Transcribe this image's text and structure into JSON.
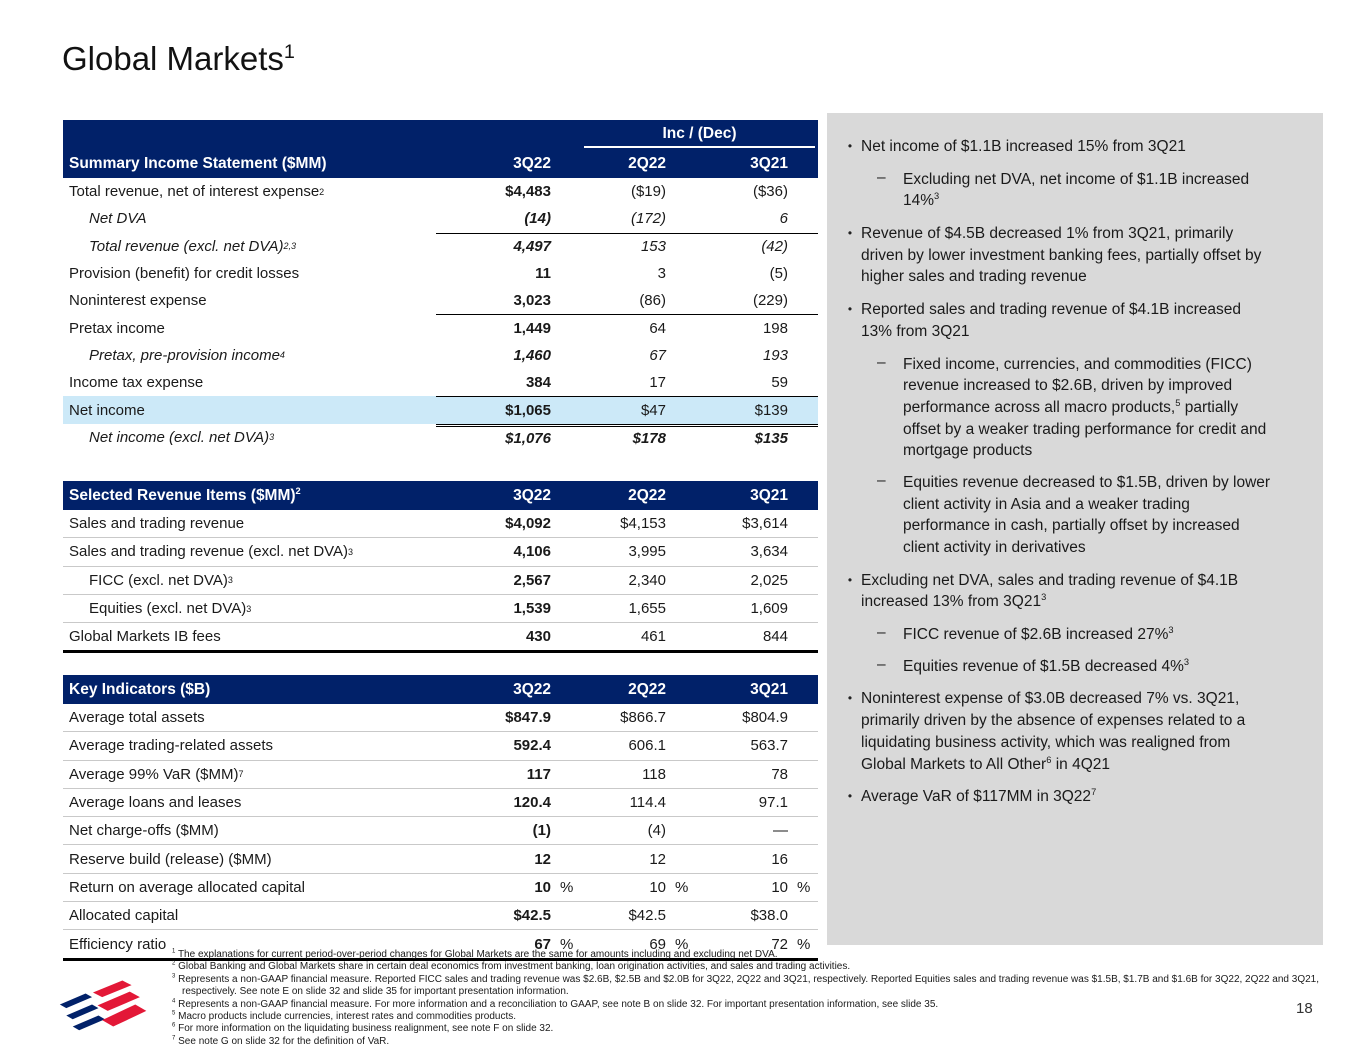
{
  "page": {
    "title": "Global Markets^1^",
    "page_number": "18"
  },
  "colors": {
    "navy": "#012169",
    "highlight_blue": "#cce9f8",
    "panel_gray": "#d9d9d9",
    "logo_red": "#e31837",
    "logo_blue": "#012169"
  },
  "tables": {
    "t1": {
      "inc_dec": "Inc / (Dec)",
      "title": "Summary Income Statement ($MM)",
      "columns": [
        "3Q22",
        "2Q22",
        "3Q21"
      ],
      "rows": [
        {
          "label": "Total revenue, net of interest expense^2^",
          "cls": "",
          "em": [
            "b",
            "",
            ""
          ],
          "v": [
            "$4,483",
            "($19)",
            "($36)"
          ]
        },
        {
          "label": "Net DVA",
          "cls": "ind ital",
          "em": [
            "b",
            "",
            ""
          ],
          "v": [
            "(14)",
            "(172)",
            "6"
          ]
        },
        {
          "label": "Total revenue (excl. net DVA)^2,3^",
          "cls": "ind ital",
          "bt": "s",
          "em": [
            "b",
            "",
            ""
          ],
          "v": [
            "4,497",
            "153",
            "(42)"
          ]
        },
        {
          "label": "Provision (benefit) for credit losses",
          "cls": "",
          "em": [
            "b",
            "",
            ""
          ],
          "v": [
            "11",
            "3",
            "(5)"
          ]
        },
        {
          "label": "Noninterest expense",
          "cls": "",
          "em": [
            "b",
            "",
            ""
          ],
          "v": [
            "3,023",
            "(86)",
            "(229)"
          ]
        },
        {
          "label": "Pretax income",
          "cls": "",
          "bt": "s",
          "em": [
            "b",
            "",
            ""
          ],
          "v": [
            "1,449",
            "64",
            "198"
          ]
        },
        {
          "label": "Pretax, pre-provision income^4^",
          "cls": "ind ital",
          "em": [
            "b",
            "",
            ""
          ],
          "v": [
            "1,460",
            "67",
            "193"
          ]
        },
        {
          "label": "Income tax expense",
          "cls": "",
          "em": [
            "b",
            "",
            ""
          ],
          "v": [
            "384",
            "17",
            "59"
          ]
        },
        {
          "label": "Net income",
          "cls": "hl",
          "bt": "s",
          "em": [
            "b",
            "",
            ""
          ],
          "v": [
            "$1,065",
            "$47",
            "$139"
          ]
        },
        {
          "label": "Net income (excl. net DVA)^3^",
          "cls": "ind ital",
          "bt": "d",
          "em": [
            "b",
            "b",
            "b"
          ],
          "v": [
            "$1,076",
            "$178",
            "$135"
          ]
        }
      ]
    },
    "t2": {
      "title": "Selected Revenue Items ($MM)^2^",
      "columns": [
        "3Q22",
        "2Q22",
        "3Q21"
      ],
      "rows": [
        {
          "label": "Sales and trading revenue",
          "cls": "",
          "em": [
            "b",
            "",
            ""
          ],
          "v": [
            "$4,092",
            "$4,153",
            "$3,614"
          ]
        },
        {
          "label": "Sales and trading revenue (excl. net DVA)^3^",
          "cls": "",
          "em": [
            "b",
            "",
            ""
          ],
          "v": [
            "4,106",
            "3,995",
            "3,634"
          ]
        },
        {
          "label": "FICC (excl. net DVA)^3^",
          "cls": "ind",
          "em": [
            "b",
            "",
            ""
          ],
          "v": [
            "2,567",
            "2,340",
            "2,025"
          ]
        },
        {
          "label": "Equities (excl. net DVA)^3^",
          "cls": "ind",
          "em": [
            "b",
            "",
            ""
          ],
          "v": [
            "1,539",
            "1,655",
            "1,609"
          ]
        },
        {
          "label": "Global Markets IB fees",
          "cls": "",
          "em": [
            "b",
            "",
            ""
          ],
          "v": [
            "430",
            "461",
            "844"
          ]
        }
      ]
    },
    "t3": {
      "title": "Key Indicators ($B)",
      "columns": [
        "3Q22",
        "2Q22",
        "3Q21"
      ],
      "rows": [
        {
          "label": "Average total assets",
          "cls": "",
          "em": [
            "b",
            "",
            ""
          ],
          "v": [
            "$847.9",
            "$866.7",
            "$804.9"
          ]
        },
        {
          "label": "Average trading-related assets",
          "cls": "",
          "em": [
            "b",
            "",
            ""
          ],
          "v": [
            "592.4",
            "606.1",
            "563.7"
          ]
        },
        {
          "label": "Average 99% VaR ($MM)^7^",
          "cls": "",
          "em": [
            "b",
            "",
            ""
          ],
          "v": [
            "117",
            "118",
            "78"
          ]
        },
        {
          "label": "Average loans and leases",
          "cls": "",
          "em": [
            "b",
            "",
            ""
          ],
          "v": [
            "120.4",
            "114.4",
            "97.1"
          ]
        },
        {
          "label": "Net charge-offs ($MM)",
          "cls": "",
          "em": [
            "b",
            "",
            ""
          ],
          "v": [
            "(1)",
            "(4)",
            "—"
          ]
        },
        {
          "label": "Reserve build (release) ($MM)",
          "cls": "",
          "em": [
            "b",
            "",
            ""
          ],
          "v": [
            "12",
            "12",
            "16"
          ]
        },
        {
          "label": "Return on average allocated capital",
          "cls": "",
          "em": [
            "b",
            "",
            ""
          ],
          "v": [
            "10|%",
            "10|%",
            "10|%"
          ]
        },
        {
          "label": "Allocated capital",
          "cls": "",
          "em": [
            "b",
            "",
            ""
          ],
          "v": [
            "$42.5",
            "$42.5",
            "$38.0"
          ]
        },
        {
          "label": "Efficiency ratio",
          "cls": "",
          "em": [
            "b",
            "",
            ""
          ],
          "v": [
            "67|%",
            "69|%",
            "72|%"
          ]
        }
      ]
    }
  },
  "panel": {
    "bullets": [
      {
        "t": "Net income of $1.1B increased 15% from 3Q21",
        "subs": [
          "Excluding net DVA, net income of $1.1B increased 14%^3^"
        ]
      },
      {
        "t": "Revenue of $4.5B decreased 1% from 3Q21, primarily driven by lower investment banking fees, partially offset by higher sales and trading revenue",
        "subs": []
      },
      {
        "t": "Reported sales and trading revenue of $4.1B increased 13% from 3Q21",
        "subs": [
          "Fixed income, currencies, and commodities (FICC) revenue increased to $2.6B, driven by improved performance across all macro products,^5^ partially offset by a weaker trading performance for credit and mortgage products",
          "Equities revenue decreased to $1.5B, driven by lower client activity in Asia and a weaker trading performance in cash, partially offset by increased client activity in derivatives"
        ]
      },
      {
        "t": "Excluding net DVA, sales and trading revenue of $4.1B increased 13% from 3Q21^3^",
        "subs": [
          "FICC revenue of $2.6B increased 27%^3^",
          "Equities revenue of $1.5B decreased 4%^3^"
        ]
      },
      {
        "t": "Noninterest expense of $3.0B decreased 7% vs. 3Q21, primarily driven by the absence of expenses related to a liquidating business activity, which was realigned from Global Markets to All Other^6^ in 4Q21",
        "subs": []
      },
      {
        "t": "Average VaR of $117MM in 3Q22^7^",
        "subs": []
      }
    ]
  },
  "footnotes": [
    "^1^ The explanations for current period-over-period changes for Global Markets are the same for amounts including and excluding net DVA.",
    "^2^ Global Banking and Global Markets share in certain deal economics from investment banking, loan origination activities, and sales and trading activities.",
    "^3^ Represents a non-GAAP financial measure. Reported FICC sales and trading revenue was $2.6B, $2.5B and $2.0B for 3Q22, 2Q22 and 3Q21, respectively. Reported Equities sales and trading revenue was $1.5B, $1.7B and $1.6B for 3Q22, 2Q22 and 3Q21, respectively. See note E on slide 32 and slide 35 for important presentation information.",
    "^4^ Represents a non-GAAP financial measure. For more information and a reconciliation to GAAP, see note B on slide 32. For important presentation information, see slide 35.",
    "^5^ Macro products include currencies, interest rates and commodities products.",
    "^6^ For more information on the liquidating business realignment, see note F on slide 32.",
    "^7^ See note G on slide 32 for the definition of VaR."
  ]
}
